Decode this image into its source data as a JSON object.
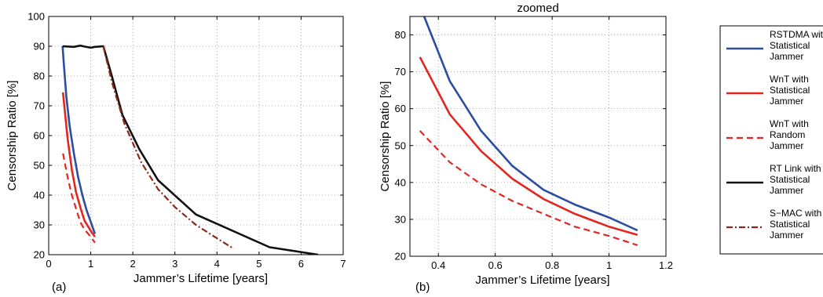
{
  "chart_data": [
    {
      "type": "line",
      "panel_label": "(a)",
      "title": "",
      "xlabel": "Jammer’s Lifetime [years]",
      "ylabel": "Censorship Ratio [%]",
      "xlim": [
        0,
        7
      ],
      "ylim": [
        20,
        100
      ],
      "xticks": [
        0,
        1,
        2,
        3,
        4,
        5,
        6,
        7
      ],
      "yticks": [
        20,
        30,
        40,
        50,
        60,
        70,
        80,
        90,
        100
      ],
      "grid": true,
      "series": [
        {
          "name": "RSTDMA with Statistical Jammer",
          "color": "#2b4ea0",
          "style": "solid",
          "points": [
            [
              0.33,
              90
            ],
            [
              0.36,
              84
            ],
            [
              0.42,
              73
            ],
            [
              0.5,
              63
            ],
            [
              0.6,
              54
            ],
            [
              0.7,
              46
            ],
            [
              0.8,
              40
            ],
            [
              0.9,
              35
            ],
            [
              1.0,
              31
            ],
            [
              1.1,
              27
            ]
          ]
        },
        {
          "name": "WnT with Statistical Jammer",
          "color": "#e42520",
          "style": "solid",
          "points": [
            [
              0.34,
              74.5
            ],
            [
              0.4,
              66
            ],
            [
              0.45,
              59
            ],
            [
              0.55,
              48.5
            ],
            [
              0.65,
              41
            ],
            [
              0.75,
              36
            ],
            [
              0.85,
              31.5
            ],
            [
              1.0,
              28
            ],
            [
              1.1,
              26
            ]
          ]
        },
        {
          "name": "WnT with Random Jammer",
          "color": "#e42520",
          "style": "dashed",
          "points": [
            [
              0.34,
              54
            ],
            [
              0.45,
              46
            ],
            [
              0.55,
              40
            ],
            [
              0.65,
              35.5
            ],
            [
              0.75,
              31
            ],
            [
              0.85,
              28.5
            ],
            [
              1.0,
              26
            ],
            [
              1.1,
              24
            ]
          ]
        },
        {
          "name": "RT Link with Statistical Jammer",
          "color": "#111111",
          "style": "solid",
          "points": [
            [
              0.33,
              90
            ],
            [
              0.6,
              89.8
            ],
            [
              0.75,
              90.2
            ],
            [
              0.85,
              89.9
            ],
            [
              1.0,
              89.5
            ],
            [
              1.1,
              89.8
            ],
            [
              1.3,
              90
            ],
            [
              1.5,
              80
            ],
            [
              1.75,
              67
            ],
            [
              2.15,
              55.5
            ],
            [
              2.6,
              45
            ],
            [
              3.5,
              33.5
            ],
            [
              5.25,
              22.5
            ],
            [
              6.4,
              20
            ]
          ]
        },
        {
          "name": "S−MAC with Statistical Jammer",
          "color": "#8b2a1a",
          "style": "dashdot",
          "points": [
            [
              1.3,
              90
            ],
            [
              1.5,
              78
            ],
            [
              1.8,
              64
            ],
            [
              2.2,
              51
            ],
            [
              2.6,
              42
            ],
            [
              3.0,
              36
            ],
            [
              3.5,
              30
            ],
            [
              4.0,
              25.5
            ],
            [
              4.4,
              22
            ]
          ]
        }
      ]
    },
    {
      "type": "line",
      "panel_label": "(b)",
      "title": "zoomed",
      "xlabel": "Jammer’s Lifetime [years]",
      "ylabel": "Censorship Ratio [%]",
      "xlim": [
        0.3,
        1.2
      ],
      "ylim": [
        20,
        85
      ],
      "xticks": [
        0.4,
        0.6,
        0.8,
        1,
        1.2
      ],
      "xtick_labels": [
        "0.4",
        "0.6",
        "0.8",
        "1",
        "1.2"
      ],
      "yticks": [
        20,
        30,
        40,
        50,
        60,
        70,
        80
      ],
      "grid": true,
      "series": [
        {
          "name": "RSTDMA with Statistical Jammer",
          "color": "#2b4ea0",
          "style": "solid",
          "points": [
            [
              0.35,
              85
            ],
            [
              0.44,
              67.5
            ],
            [
              0.55,
              54
            ],
            [
              0.66,
              44.5
            ],
            [
              0.77,
              38
            ],
            [
              0.88,
              34
            ],
            [
              1.0,
              30.5
            ],
            [
              1.1,
              27
            ]
          ]
        },
        {
          "name": "WnT with Statistical Jammer",
          "color": "#e42520",
          "style": "solid",
          "points": [
            [
              0.335,
              74
            ],
            [
              0.44,
              58.5
            ],
            [
              0.55,
              48.5
            ],
            [
              0.66,
              41
            ],
            [
              0.77,
              35.5
            ],
            [
              0.88,
              31.5
            ],
            [
              1.0,
              28
            ],
            [
              1.1,
              25.8
            ]
          ]
        },
        {
          "name": "WnT with Random Jammer",
          "color": "#e42520",
          "style": "dashed",
          "points": [
            [
              0.335,
              54
            ],
            [
              0.44,
              45.5
            ],
            [
              0.55,
              39.5
            ],
            [
              0.66,
              35
            ],
            [
              0.77,
              31.5
            ],
            [
              0.88,
              28
            ],
            [
              1.0,
              25.5
            ],
            [
              1.1,
              23
            ]
          ]
        }
      ]
    }
  ],
  "legend": {
    "placement": "right",
    "entries": [
      {
        "lines": [
          "RSTDMA with",
          "Statistical",
          "Jammer"
        ],
        "color": "#2b4ea0",
        "style": "solid"
      },
      {
        "lines": [
          "WnT with",
          "Statistical",
          "Jammer"
        ],
        "color": "#e42520",
        "style": "solid"
      },
      {
        "lines": [
          "WnT with",
          "Random",
          "Jammer"
        ],
        "color": "#e42520",
        "style": "dashed"
      },
      {
        "lines": [
          "RT Link with",
          "Statistical",
          "Jammer"
        ],
        "color": "#111111",
        "style": "solid"
      },
      {
        "lines": [
          "S−MAC with",
          "Statistical",
          "Jammer"
        ],
        "color": "#8b2a1a",
        "style": "dashdot"
      }
    ]
  }
}
